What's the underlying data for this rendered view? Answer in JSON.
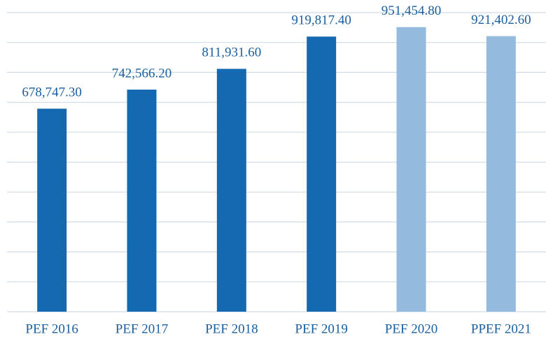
{
  "chart_data": {
    "type": "bar",
    "categories": [
      "PEF 2016",
      "PEF 2017",
      "PEF 2018",
      "PEF 2019",
      "PEF 2020",
      "PPEF 2021"
    ],
    "values": [
      678747.3,
      742566.2,
      811931.6,
      919817.4,
      951454.8,
      921402.6
    ],
    "value_labels": [
      "678,747.30",
      "742,566.20",
      "811,931.60",
      "919,817.40",
      "951,454.80",
      "921,402.60"
    ],
    "colors": [
      "#1569b0",
      "#1569b0",
      "#1569b0",
      "#1569b0",
      "#94bbdd",
      "#94bbdd"
    ],
    "ylim": [
      0,
      1000000
    ],
    "yticks": [
      0,
      100000,
      200000,
      300000,
      400000,
      500000,
      600000,
      700000,
      800000,
      900000,
      1000000
    ],
    "ytick_labels": false,
    "grid": true
  }
}
